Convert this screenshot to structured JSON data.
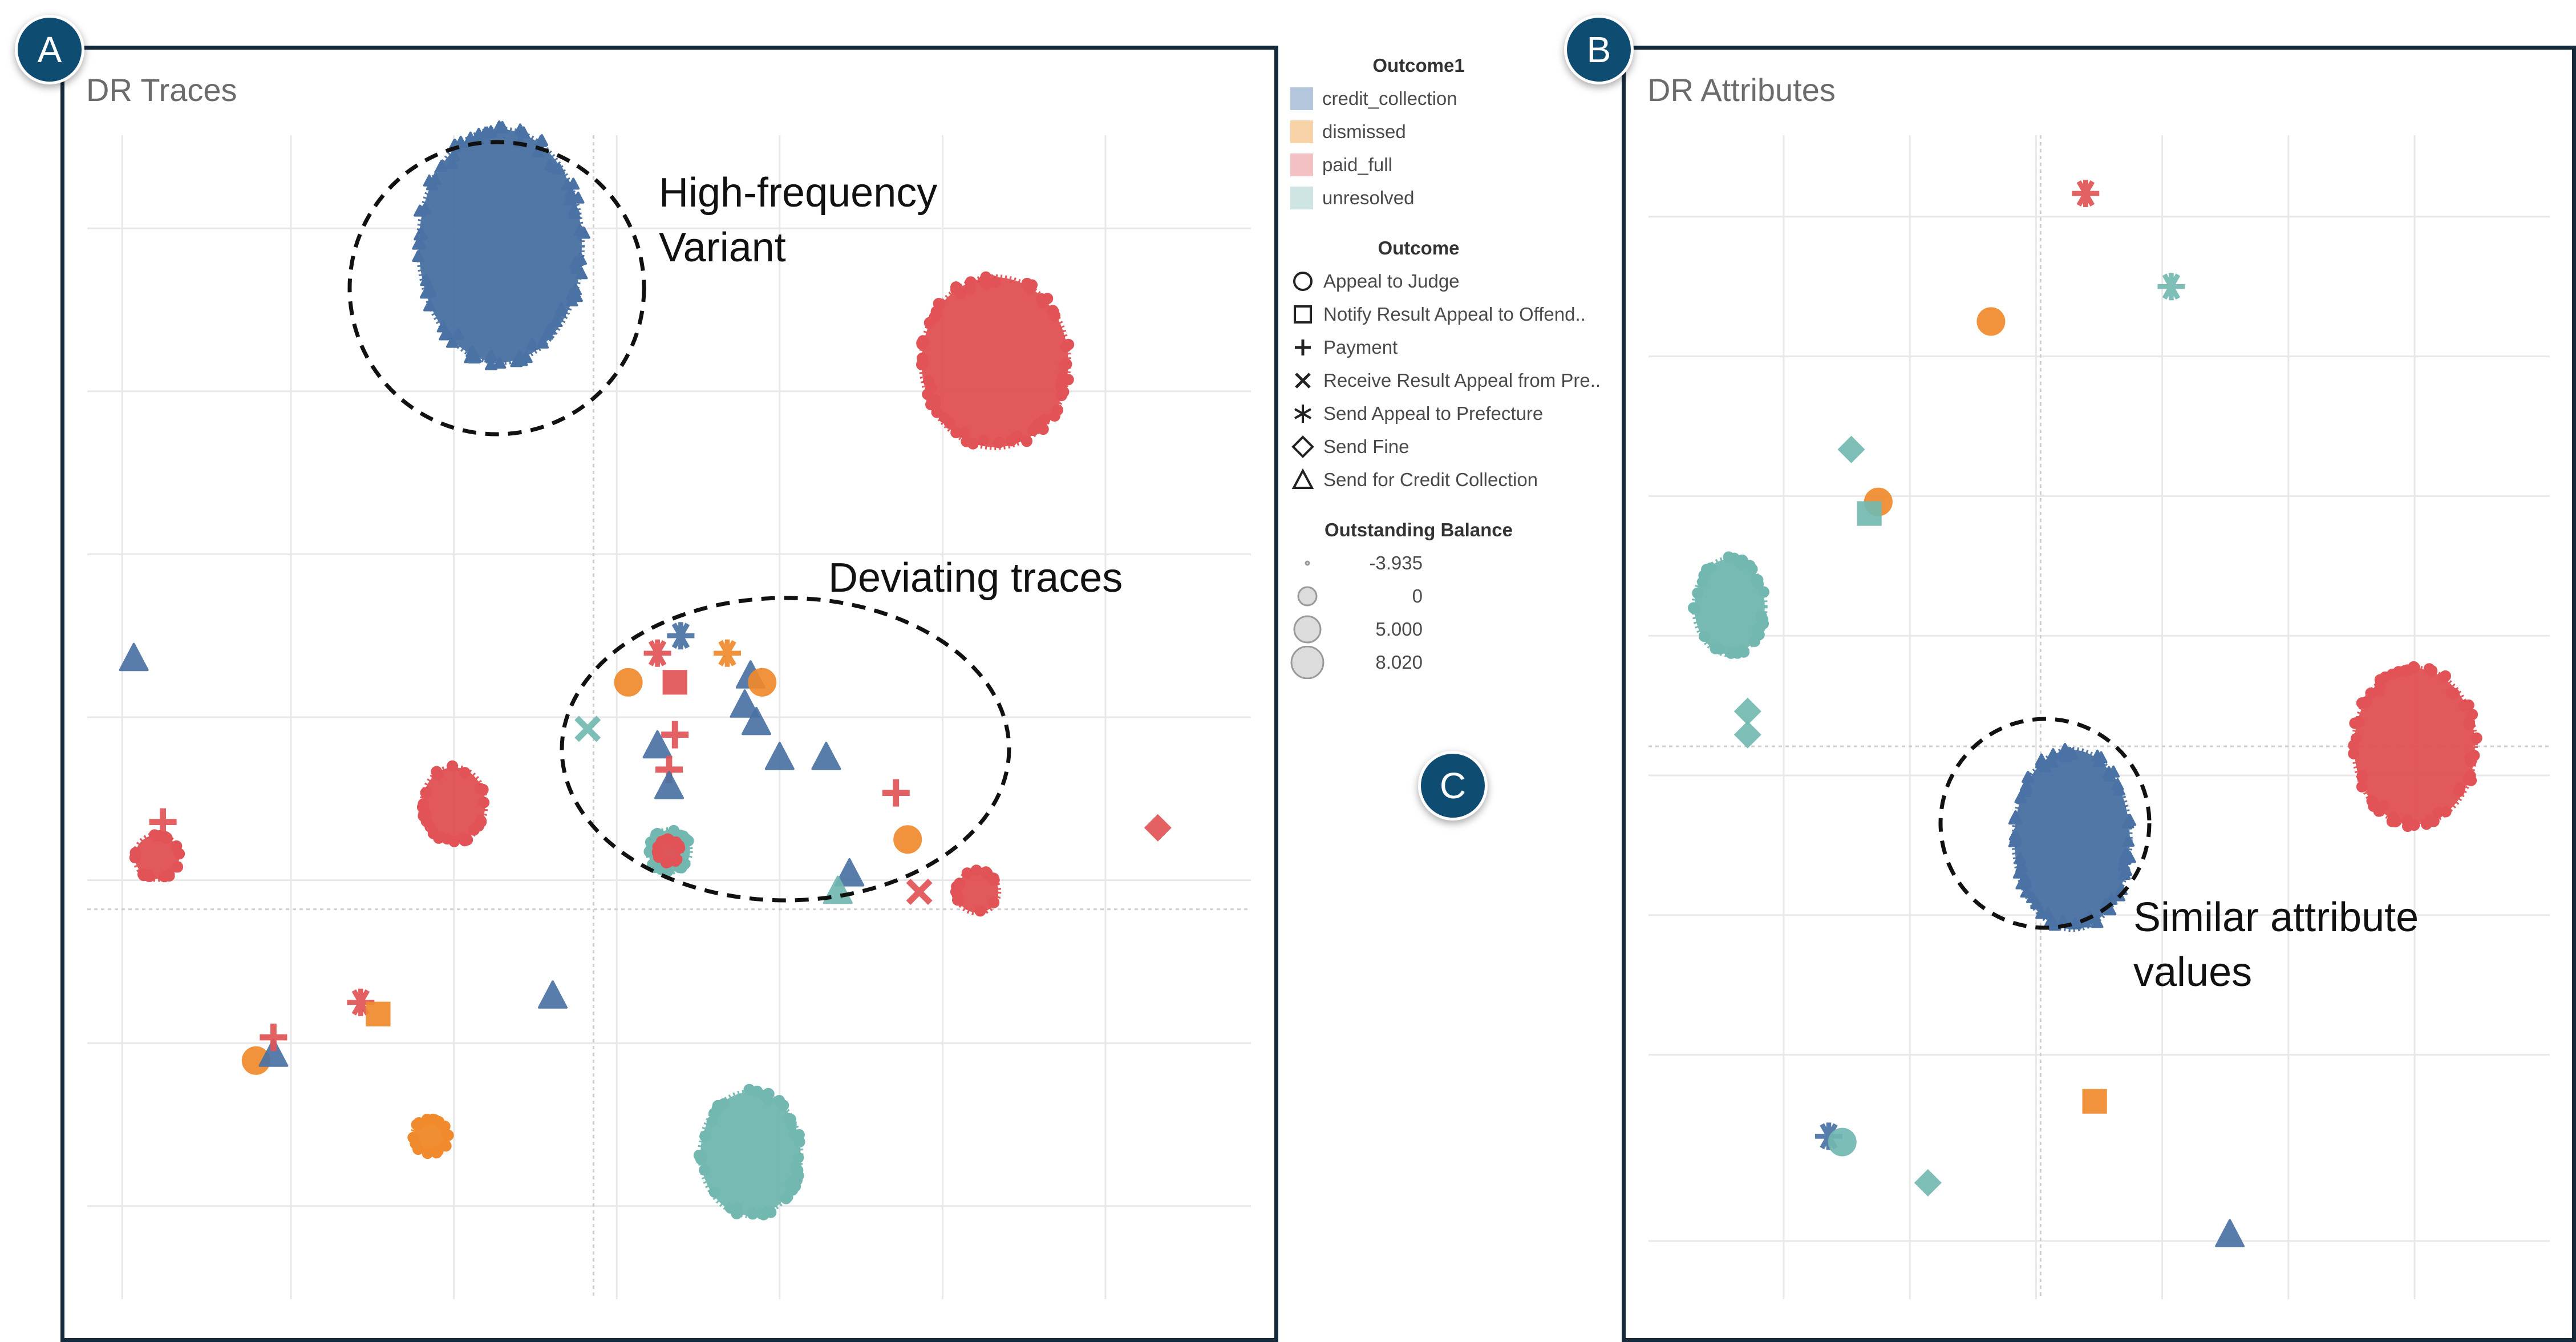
{
  "panels": {
    "a": {
      "badge": "A",
      "title": "DR Traces"
    },
    "b": {
      "badge": "B",
      "title": "DR Attributes"
    },
    "c": {
      "badge": "C"
    }
  },
  "annotations": {
    "high_frequency": [
      "High-frequency",
      "Variant"
    ],
    "deviating": "Deviating traces",
    "similar": [
      "Similar attribute",
      "values"
    ]
  },
  "legend": {
    "outcome1": {
      "title": "Outcome1",
      "items": [
        {
          "label": "credit_collection",
          "color": "#b3c6dc"
        },
        {
          "label": "dismissed",
          "color": "#f8d3a8"
        },
        {
          "label": "paid_full",
          "color": "#f3c0c3"
        },
        {
          "label": "unresolved",
          "color": "#cfe5e3"
        }
      ]
    },
    "outcome": {
      "title": "Outcome",
      "items": [
        {
          "label": "Appeal to Judge",
          "shape": "circle"
        },
        {
          "label": "Notify Result Appeal to Offend..",
          "shape": "square"
        },
        {
          "label": "Payment",
          "shape": "plus"
        },
        {
          "label": "Receive Result Appeal from Pre..",
          "shape": "cross"
        },
        {
          "label": "Send Appeal to Prefecture",
          "shape": "asterisk"
        },
        {
          "label": "Send Fine",
          "shape": "diamond"
        },
        {
          "label": "Send for Credit Collection",
          "shape": "triangle"
        }
      ]
    },
    "balance": {
      "title": "Outstanding Balance",
      "items": [
        {
          "label": "-3.935",
          "size": 0
        },
        {
          "label": "0",
          "size": 1
        },
        {
          "label": "5.000",
          "size": 2
        },
        {
          "label": "8.020",
          "size": 3
        }
      ]
    }
  },
  "colors": {
    "credit_collection": "#4a72a4",
    "dismissed": "#f08a2c",
    "paid_full": "#e15356",
    "unresolved": "#72b8b1",
    "frame": "#152b3c",
    "badge": "#0f4c72"
  },
  "chart_data": [
    {
      "type": "scatter",
      "title": "DR Traces",
      "xlabel": "",
      "ylabel": "",
      "xlim": [
        0,
        100
      ],
      "ylim": [
        0,
        100
      ],
      "grid": true,
      "clusters": [
        {
          "x": 35.5,
          "y": 90.5,
          "rx": 7.0,
          "ry": 10.0,
          "category": "credit_collection",
          "shape": "triangle"
        },
        {
          "x": 78.0,
          "y": 80.5,
          "rx": 6.3,
          "ry": 7.3,
          "category": "paid_full",
          "shape": "circle"
        },
        {
          "x": 57.0,
          "y": 12.5,
          "rx": 4.3,
          "ry": 5.3,
          "category": "unresolved",
          "shape": "circle"
        },
        {
          "x": 31.5,
          "y": 42.5,
          "rx": 2.7,
          "ry": 3.2,
          "category": "paid_full",
          "shape": "circle"
        },
        {
          "x": 6.0,
          "y": 38.0,
          "rx": 1.9,
          "ry": 1.9,
          "category": "paid_full",
          "shape": "circle"
        },
        {
          "x": 29.5,
          "y": 14.0,
          "rx": 1.5,
          "ry": 1.5,
          "category": "dismissed",
          "shape": "circle"
        },
        {
          "x": 76.5,
          "y": 35.0,
          "rx": 1.8,
          "ry": 1.8,
          "category": "paid_full",
          "shape": "circle"
        },
        {
          "x": 50.0,
          "y": 38.5,
          "rx": 1.8,
          "ry": 1.8,
          "category": "unresolved",
          "shape": "circle"
        },
        {
          "x": 50.0,
          "y": 38.5,
          "rx": 1.0,
          "ry": 1.0,
          "category": "paid_full",
          "shape": "circle"
        }
      ],
      "points": [
        {
          "x": 4.0,
          "y": 55.0,
          "category": "credit_collection",
          "shape": "triangle"
        },
        {
          "x": 6.5,
          "y": 41.0,
          "category": "paid_full",
          "shape": "plus"
        },
        {
          "x": 14.5,
          "y": 20.5,
          "category": "dismissed",
          "shape": "circle"
        },
        {
          "x": 16.0,
          "y": 21.0,
          "category": "credit_collection",
          "shape": "triangle"
        },
        {
          "x": 16.0,
          "y": 22.5,
          "category": "paid_full",
          "shape": "plus"
        },
        {
          "x": 23.5,
          "y": 25.5,
          "category": "paid_full",
          "shape": "asterisk"
        },
        {
          "x": 25.0,
          "y": 24.5,
          "category": "dismissed",
          "shape": "square"
        },
        {
          "x": 40.0,
          "y": 26.0,
          "category": "credit_collection",
          "shape": "triangle"
        },
        {
          "x": 43.0,
          "y": 49.0,
          "category": "unresolved",
          "shape": "cross"
        },
        {
          "x": 46.5,
          "y": 53.0,
          "category": "dismissed",
          "shape": "circle"
        },
        {
          "x": 49.0,
          "y": 55.5,
          "category": "paid_full",
          "shape": "asterisk"
        },
        {
          "x": 51.0,
          "y": 57.0,
          "category": "credit_collection",
          "shape": "asterisk"
        },
        {
          "x": 50.5,
          "y": 53.0,
          "category": "paid_full",
          "shape": "square"
        },
        {
          "x": 55.0,
          "y": 55.5,
          "category": "dismissed",
          "shape": "asterisk"
        },
        {
          "x": 57.0,
          "y": 53.5,
          "category": "credit_collection",
          "shape": "triangle"
        },
        {
          "x": 58.0,
          "y": 53.0,
          "category": "dismissed",
          "shape": "circle"
        },
        {
          "x": 56.5,
          "y": 51.0,
          "category": "credit_collection",
          "shape": "triangle"
        },
        {
          "x": 57.5,
          "y": 49.5,
          "category": "credit_collection",
          "shape": "triangle"
        },
        {
          "x": 50.5,
          "y": 48.5,
          "category": "paid_full",
          "shape": "plus"
        },
        {
          "x": 49.0,
          "y": 47.5,
          "category": "credit_collection",
          "shape": "triangle"
        },
        {
          "x": 50.0,
          "y": 45.5,
          "category": "paid_full",
          "shape": "plus"
        },
        {
          "x": 50.0,
          "y": 44.0,
          "category": "credit_collection",
          "shape": "triangle"
        },
        {
          "x": 59.5,
          "y": 46.5,
          "category": "credit_collection",
          "shape": "triangle"
        },
        {
          "x": 63.5,
          "y": 46.5,
          "category": "credit_collection",
          "shape": "triangle"
        },
        {
          "x": 65.5,
          "y": 36.5,
          "category": "credit_collection",
          "shape": "triangle"
        },
        {
          "x": 64.5,
          "y": 35.0,
          "category": "unresolved",
          "shape": "triangle"
        },
        {
          "x": 69.5,
          "y": 43.5,
          "category": "paid_full",
          "shape": "plus"
        },
        {
          "x": 70.5,
          "y": 39.5,
          "category": "dismissed",
          "shape": "circle"
        },
        {
          "x": 71.5,
          "y": 35.0,
          "category": "paid_full",
          "shape": "cross"
        },
        {
          "x": 92.0,
          "y": 40.5,
          "category": "paid_full",
          "shape": "diamond"
        }
      ]
    },
    {
      "type": "scatter",
      "title": "DR Attributes",
      "xlabel": "",
      "ylabel": "",
      "xlim": [
        0,
        100
      ],
      "ylim": [
        0,
        100
      ],
      "grid": true,
      "clusters": [
        {
          "x": 85.0,
          "y": 47.5,
          "rx": 6.7,
          "ry": 6.7,
          "category": "paid_full",
          "shape": "circle"
        },
        {
          "x": 47.0,
          "y": 39.5,
          "rx": 6.4,
          "ry": 7.7,
          "category": "credit_collection",
          "shape": "triangle"
        },
        {
          "x": 9.0,
          "y": 59.5,
          "rx": 3.9,
          "ry": 4.1,
          "category": "unresolved",
          "shape": "circle"
        }
      ],
      "points": [
        {
          "x": 48.5,
          "y": 95.0,
          "category": "paid_full",
          "shape": "asterisk"
        },
        {
          "x": 58.0,
          "y": 87.0,
          "category": "unresolved",
          "shape": "asterisk"
        },
        {
          "x": 38.0,
          "y": 84.0,
          "category": "dismissed",
          "shape": "circle"
        },
        {
          "x": 22.5,
          "y": 73.0,
          "category": "unresolved",
          "shape": "diamond"
        },
        {
          "x": 25.5,
          "y": 68.5,
          "category": "dismissed",
          "shape": "circle"
        },
        {
          "x": 24.5,
          "y": 67.5,
          "category": "unresolved",
          "shape": "square"
        },
        {
          "x": 11.0,
          "y": 50.5,
          "category": "unresolved",
          "shape": "diamond"
        },
        {
          "x": 11.0,
          "y": 48.5,
          "category": "unresolved",
          "shape": "diamond"
        },
        {
          "x": 49.5,
          "y": 17.0,
          "category": "dismissed",
          "shape": "square"
        },
        {
          "x": 20.0,
          "y": 14.0,
          "category": "credit_collection",
          "shape": "asterisk"
        },
        {
          "x": 21.5,
          "y": 13.5,
          "category": "unresolved",
          "shape": "circle"
        },
        {
          "x": 31.0,
          "y": 10.0,
          "category": "unresolved",
          "shape": "diamond"
        },
        {
          "x": 64.5,
          "y": 5.5,
          "category": "credit_collection",
          "shape": "triangle"
        }
      ]
    }
  ]
}
